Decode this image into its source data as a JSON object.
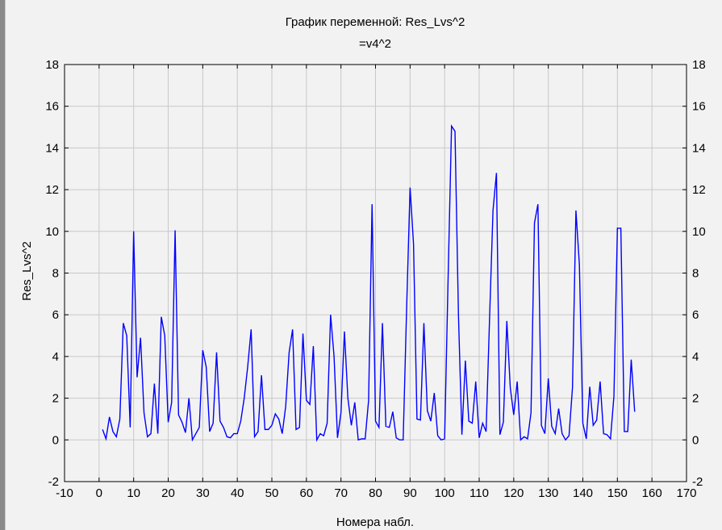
{
  "chart_data": {
    "type": "line",
    "title": "График переменной: Res_Lvs^2",
    "subtitle": "=v4^2",
    "xlabel": "Номера набл.",
    "ylabel": "Res_Lvs^2",
    "xlim": [
      -10,
      170
    ],
    "ylim": [
      -2,
      18
    ],
    "xticks": [
      -10,
      0,
      10,
      20,
      30,
      40,
      50,
      60,
      70,
      80,
      90,
      100,
      110,
      120,
      130,
      140,
      150,
      160,
      170
    ],
    "yticks": [
      -2,
      0,
      2,
      4,
      6,
      8,
      10,
      12,
      14,
      16,
      18
    ],
    "grid": true,
    "line_color": "#0000ff",
    "series": [
      {
        "values": [
          0.5,
          0.05,
          1.1,
          0.4,
          0.15,
          1.0,
          5.6,
          5.0,
          0.6,
          10.0,
          3.0,
          4.9,
          1.3,
          0.15,
          0.3,
          2.7,
          0.3,
          5.9,
          5.0,
          0.85,
          1.8,
          10.05,
          1.2,
          0.85,
          0.35,
          2.0,
          0.0,
          0.3,
          0.6,
          4.3,
          3.5,
          0.4,
          0.8,
          4.2,
          0.9,
          0.6,
          0.15,
          0.1,
          0.3,
          0.3,
          0.9,
          2.0,
          3.5,
          5.3,
          0.15,
          0.4,
          3.1,
          0.5,
          0.5,
          0.7,
          1.25,
          1.0,
          0.3,
          1.6,
          4.2,
          5.3,
          0.5,
          0.6,
          5.1,
          1.9,
          1.7,
          4.5,
          0.0,
          0.3,
          0.2,
          0.8,
          6.0,
          4.0,
          0.1,
          1.3,
          5.2,
          2.0,
          0.7,
          1.8,
          0.0,
          0.05,
          0.05,
          1.9,
          11.3,
          0.9,
          0.6,
          5.6,
          0.65,
          0.6,
          1.35,
          0.1,
          0.0,
          0.0,
          6.3,
          12.1,
          9.4,
          1.0,
          0.95,
          5.6,
          1.4,
          0.9,
          2.25,
          0.2,
          0.0,
          0.05,
          7.7,
          15.05,
          14.8,
          6.0,
          0.25,
          3.8,
          0.9,
          0.8,
          2.8,
          0.1,
          0.8,
          0.4,
          5.8,
          11.0,
          12.8,
          0.25,
          0.85,
          5.7,
          2.5,
          1.2,
          2.8,
          0.0,
          0.15,
          0.05,
          1.3,
          10.4,
          11.3,
          0.7,
          0.3,
          2.95,
          0.65,
          0.3,
          1.5,
          0.3,
          0.0,
          0.2,
          2.5,
          11.0,
          8.4,
          0.8,
          0.05,
          2.55,
          0.7,
          0.95,
          2.8,
          0.3,
          0.25,
          0.05,
          2.1,
          10.15,
          10.15,
          0.4,
          0.4,
          3.85,
          1.35
        ]
      }
    ]
  }
}
